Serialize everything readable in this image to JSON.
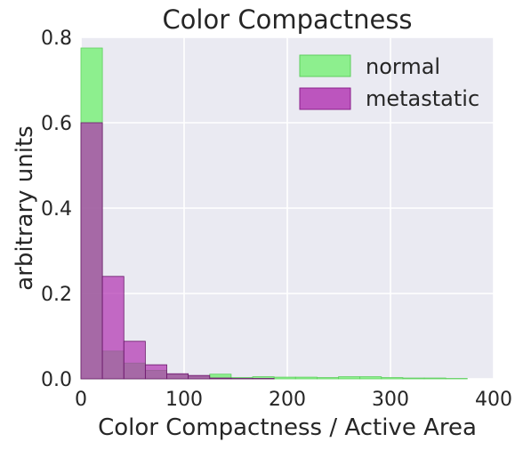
{
  "chart_data": {
    "type": "bar",
    "title": "Color Compactness",
    "xlabel": "Color Compactness / Active Area",
    "ylabel": "arbitrary units",
    "xlim": [
      0,
      400
    ],
    "ylim": [
      0,
      0.8
    ],
    "xticks": [
      "0",
      "100",
      "200",
      "300",
      "400"
    ],
    "yticks": [
      "0.0",
      "0.2",
      "0.4",
      "0.6",
      "0.8"
    ],
    "grid": true,
    "legend_position": "top-right",
    "bin_edges": [
      0,
      20.8,
      41.6,
      62.4,
      83.2,
      104,
      124.8,
      145.6,
      166.4,
      187.2,
      208,
      228.8,
      249.6,
      270.4,
      291.2,
      312,
      332.8,
      353.6,
      374.4
    ],
    "series": [
      {
        "name": "normal",
        "color": "#7CF07C",
        "values": [
          0.775,
          0.065,
          0.037,
          0.02,
          0.01,
          0.006,
          0.011,
          0.003,
          0.005,
          0.004,
          0.004,
          0.003,
          0.005,
          0.005,
          0.003,
          0.002,
          0.002,
          0.001
        ]
      },
      {
        "name": "metastatic",
        "color": "#B030B0",
        "values": [
          0.6,
          0.24,
          0.088,
          0.033,
          0.012,
          0.008,
          0.002,
          0.001,
          0.001,
          0.0,
          0.0,
          0.0,
          0.0,
          0.0,
          0.0,
          0.0,
          0.0,
          0.0
        ]
      }
    ]
  }
}
